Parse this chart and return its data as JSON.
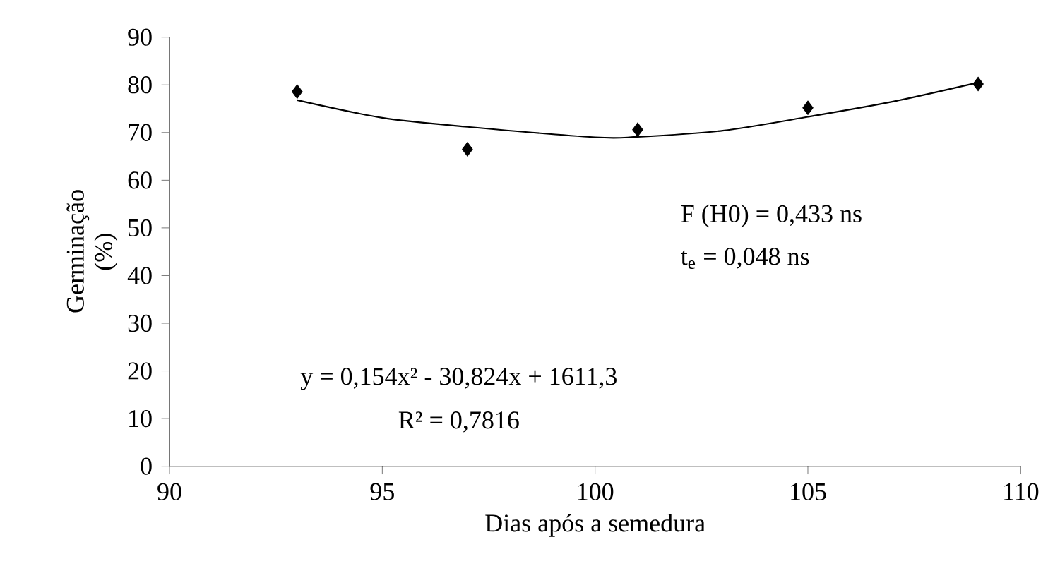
{
  "chart_data": {
    "type": "scatter",
    "xlabel": "Dias após a semedura",
    "ylabel": "Germinação (%)",
    "xlim": [
      90,
      110
    ],
    "xticks": [
      90,
      95,
      100,
      105,
      110
    ],
    "ylim": [
      0,
      90
    ],
    "yticks": [
      0,
      10,
      20,
      30,
      40,
      50,
      60,
      70,
      80,
      90
    ],
    "marker": "diamond",
    "series": [
      {
        "color": "#000000",
        "x": [
          93,
          97,
          101,
          105,
          109
        ],
        "values": [
          78.6,
          66.5,
          70.6,
          75.2,
          80.2
        ]
      },
      {
        "type": "line",
        "color": "#000000",
        "marker": "none",
        "x": [
          93,
          95,
          97,
          100,
          101,
          103,
          105,
          107,
          109
        ],
        "values": [
          76.8,
          73.1,
          71.2,
          69.0,
          69.1,
          70.4,
          73.3,
          76.5,
          80.5
        ]
      }
    ],
    "annotations": [
      "F (H0) = 0,433 ns",
      "t$_{e}$ = 0,048 ns",
      "y = 0,154x² - 30,824x + 1611,3",
      "R² = 0,7816"
    ]
  }
}
